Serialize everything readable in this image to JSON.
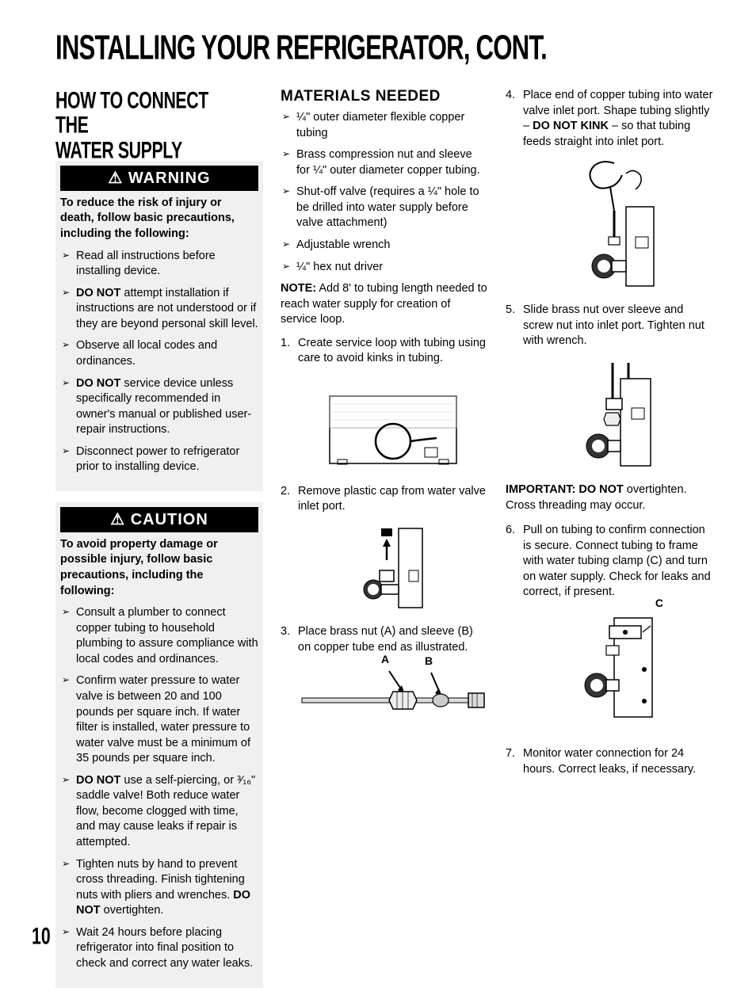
{
  "page_title": "INSTALLING YOUR REFRIGERATOR, CONT.",
  "page_number": "10",
  "col1": {
    "section_title_l1": "HOW TO CONNECT THE",
    "section_title_l2": "WATER SUPPLY",
    "warning": {
      "bar": "⚠ WARNING",
      "intro": "To reduce the risk of injury or death, follow basic precautions, including the following:",
      "items": [
        "Read all instructions before installing device.",
        "<b>DO NOT</b> attempt installation if instructions are not understood or if they are beyond personal skill level.",
        "Observe all local codes and ordinances.",
        "<b>DO NOT</b> service device unless specifically recommended in owner's manual or published user-repair instructions.",
        "Disconnect power to refrigerator prior to installing device."
      ]
    },
    "caution": {
      "bar": "⚠ CAUTION",
      "intro": "To avoid property damage or possible injury, follow basic precautions, including the following:",
      "items": [
        "Consult a plumber to connect copper tubing to household plumbing to assure compliance with local codes and ordinances.",
        "Confirm water pressure to water valve is between 20 and 100 pounds per square inch. If water filter is installed, water pressure to water valve must be a minimum of 35 pounds per square inch.",
        "<b>DO NOT</b> use a self-piercing, or ³⁄₁₆\" saddle valve! Both reduce water flow, become clogged with time, and may cause leaks if repair is attempted.",
        "Tighten nuts by hand to prevent cross threading. Finish tightening nuts with pliers and wrenches. <b>DO NOT</b> overtighten.",
        "Wait 24 hours before placing refrigerator into final position to check and correct any water leaks."
      ]
    }
  },
  "col2": {
    "materials_head": "MATERIALS NEEDED",
    "materials": [
      "¼\" outer diameter flexible copper tubing",
      "Brass compression nut and sleeve for ¼\" outer diameter copper tubing.",
      "Shut-off valve (requires a ¼\" hole to be drilled into water supply before valve attachment)",
      "Adjustable wrench",
      "¼\" hex nut driver"
    ],
    "note_label": "NOTE:",
    "note_text": " Add 8' to tubing length needed to reach water supply for creation of service loop.",
    "step1": "Create service loop with tubing using care to avoid kinks in tubing.",
    "step2": "Remove plastic cap from water valve inlet port.",
    "step3": "Place brass nut (A) and sleeve (B) on copper tube end as illustrated.",
    "label_a": "A",
    "label_b": "B"
  },
  "col3": {
    "step4": "Place end of copper tubing into water valve inlet port. Shape tubing slightly – <b>DO NOT KINK</b> – so that tubing feeds straight into inlet port.",
    "step5": "Slide brass nut over sleeve and screw nut into inlet port. Tighten nut with wrench.",
    "important_label": "IMPORTANT: DO NOT",
    "important_text": " overtighten. Cross threading may occur.",
    "step6": "Pull on tubing to confirm connection is secure. Connect tubing to frame with water tubing clamp (C) and turn on water supply. Check for leaks and correct, if present.",
    "label_c": "C",
    "step7": "Monitor water connection for 24 hours. Correct leaks, if necessary."
  }
}
